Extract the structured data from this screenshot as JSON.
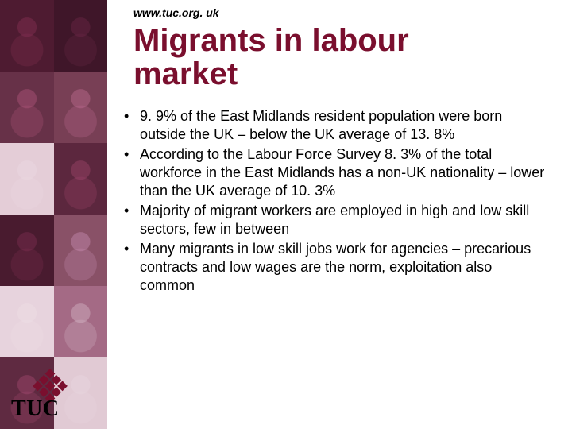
{
  "colors": {
    "title_color": "#7a0f2e",
    "text_color": "#000000",
    "background": "#ffffff",
    "logo_diamond": "#7a0f2e",
    "sidebar_base": "#6b2a44"
  },
  "typography": {
    "title_fontsize": 40,
    "body_fontsize": 18,
    "url_fontsize": 14,
    "logo_fontsize": 28,
    "font_family": "Verdana"
  },
  "header": {
    "url": "www.tuc.org. uk",
    "title_line1": "Migrants in labour",
    "title_line2": "market"
  },
  "bullets": [
    "9. 9% of the East Midlands resident population were born outside the UK – below the UK average of 13. 8%",
    "According to the Labour Force Survey 8. 3% of the total workforce in the East Midlands has a non-UK nationality – lower than the UK average of 10. 3%",
    "Majority of migrant workers are employed in high and low skill sectors, few in between",
    "Many migrants in low skill jobs work for agencies – precarious contracts and low wages are the norm, exploitation also common"
  ],
  "logo": {
    "text": "TUC"
  }
}
